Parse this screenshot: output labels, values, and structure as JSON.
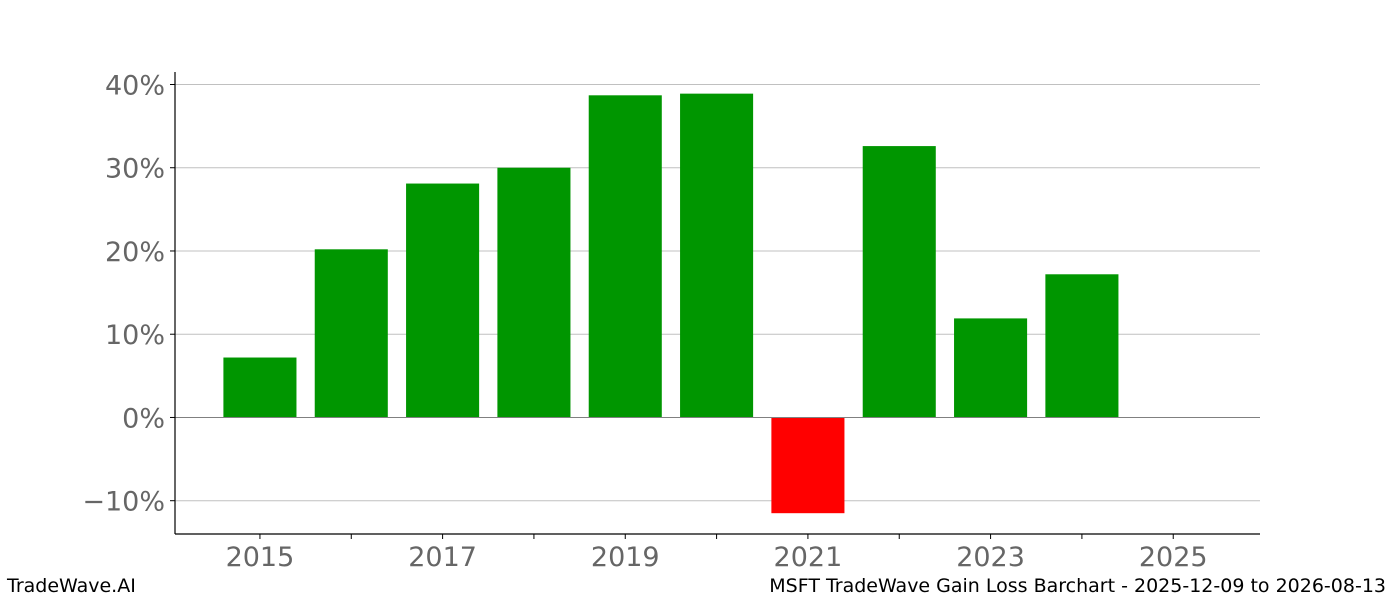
{
  "chart_data": {
    "type": "bar",
    "title": "MSFT TradeWave Gain Loss Barchart - 2025-12-09 to 2026-08-13",
    "xlabel": "",
    "ylabel": "",
    "categories": [
      "2015",
      "2016",
      "2017",
      "2018",
      "2019",
      "2020",
      "2021",
      "2022",
      "2023",
      "2024"
    ],
    "values": [
      7.2,
      20.2,
      28.1,
      30.0,
      38.7,
      38.9,
      -11.5,
      32.6,
      11.9,
      17.2
    ],
    "unit": "%",
    "ylim": [
      -14,
      41.5
    ],
    "xlim": [
      2014.07,
      2025.95
    ],
    "yticks": [
      -10,
      0,
      10,
      20,
      30,
      40
    ],
    "ytick_labels": [
      "−10%",
      "0%",
      "10%",
      "20%",
      "30%",
      "40%"
    ],
    "xticks": [
      2015,
      2017,
      2019,
      2021,
      2023,
      2025
    ],
    "xtick_labels": [
      "2015",
      "2017",
      "2019",
      "2021",
      "2023",
      "2025"
    ],
    "grid": "horizontal",
    "legend": null,
    "colors": {
      "positive": "#009600",
      "negative": "#ff0000",
      "grid": "#c0c0c0",
      "zero_line": "#808080",
      "tick_text": "#666666"
    }
  },
  "footer": {
    "left": "TradeWave.AI",
    "right": "MSFT TradeWave Gain Loss Barchart - 2025-12-09 to 2026-08-13"
  }
}
